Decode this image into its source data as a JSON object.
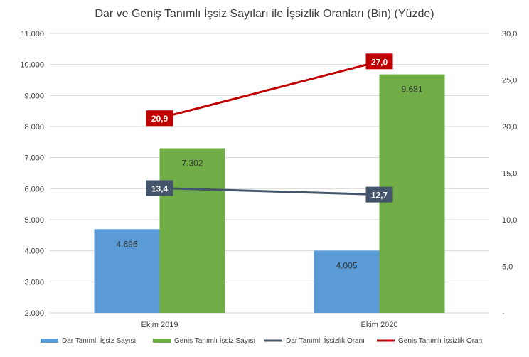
{
  "chart_data": {
    "type": "bar",
    "title": "Dar ve Geniş Tanımlı İşsiz Sayıları ile İşsizlik Oranları (Bin) (Yüzde)",
    "categories": [
      "Ekim 2019",
      "Ekim 2020"
    ],
    "bar_series": [
      {
        "name": "Dar Tanımlı İşsiz Sayısı",
        "values": [
          4696,
          4005
        ],
        "labels": [
          "4.696",
          "4.005"
        ],
        "color": "#5B9BD5"
      },
      {
        "name": "Geniş Tanımlı İşsiz Sayısı",
        "values": [
          7302,
          9681
        ],
        "labels": [
          "7.302",
          "9.681"
        ],
        "color": "#70AD47"
      }
    ],
    "line_series": [
      {
        "name": "Dar Tanımlı İşsizlik Oranı",
        "values": [
          13.4,
          12.7
        ],
        "labels": [
          "13,4",
          "12,7"
        ],
        "color": "#44546A"
      },
      {
        "name": "Geniş Tanımlı İşsizlik Oranı",
        "values": [
          20.9,
          27.0
        ],
        "labels": [
          "20,9",
          "27,0"
        ],
        "color": "#C00000"
      }
    ],
    "y_left": {
      "min": 2000,
      "max": 11000,
      "ticks": [
        2000,
        3000,
        4000,
        5000,
        6000,
        7000,
        8000,
        9000,
        10000,
        11000
      ],
      "tick_labels": [
        "2.000",
        "3.000",
        "4.000",
        "5.000",
        "6.000",
        "7.000",
        "8.000",
        "9.000",
        "10.000",
        "11.000"
      ]
    },
    "y_right": {
      "min": 0,
      "max": 30,
      "ticks": [
        0,
        5,
        10,
        15,
        20,
        25,
        30
      ],
      "tick_labels": [
        "-",
        "5,0",
        "10,0",
        "15,0",
        "20,0",
        "25,0",
        "30,0"
      ]
    },
    "grid": true,
    "legend_position": "bottom"
  }
}
